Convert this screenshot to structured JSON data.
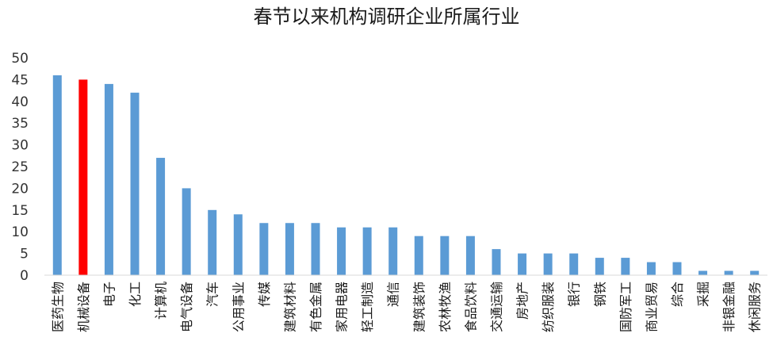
{
  "chart_data": {
    "type": "bar",
    "title": "春节以来机构调研企业所属行业",
    "categories": [
      "医药生物",
      "机械设备",
      "电子",
      "化工",
      "计算机",
      "电气设备",
      "汽车",
      "公用事业",
      "传媒",
      "建筑材料",
      "有色金属",
      "家用电器",
      "轻工制造",
      "通信",
      "建筑装饰",
      "农林牧渔",
      "食品饮料",
      "交通运输",
      "房地产",
      "纺织服装",
      "银行",
      "钢铁",
      "国防军工",
      "商业贸易",
      "综合",
      "采掘",
      "非银金融",
      "休闲服务"
    ],
    "values": [
      46,
      45,
      44,
      42,
      27,
      20,
      15,
      14,
      12,
      12,
      12,
      11,
      11,
      11,
      9,
      9,
      9,
      6,
      5,
      5,
      5,
      4,
      4,
      3,
      3,
      1,
      1,
      1
    ],
    "highlight_index": 1,
    "y_ticks": [
      "0",
      "5",
      "10",
      "15",
      "20",
      "25",
      "30",
      "35",
      "40",
      "45",
      "50"
    ],
    "ylim": [
      0,
      50
    ],
    "xlabel": "",
    "ylabel": "",
    "grid": false,
    "colors": {
      "bar": "#5b9bd5",
      "highlight": "#ff0000",
      "axis": "#d9d9d9"
    }
  }
}
